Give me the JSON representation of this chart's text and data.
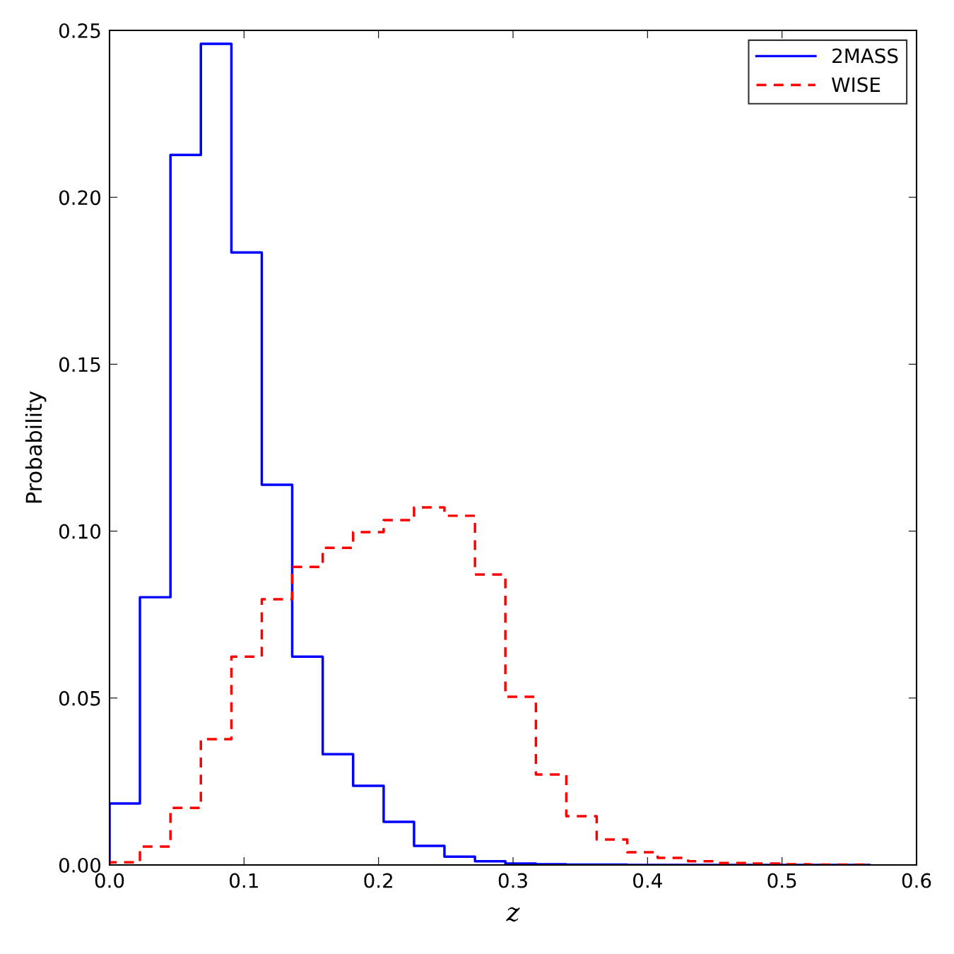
{
  "chart_data": {
    "type": "histogram",
    "xlabel": "z",
    "ylabel": "Probability",
    "bins": [
      0,
      0.0226,
      0.0453,
      0.0679,
      0.0906,
      0.1132,
      0.1358,
      0.1585,
      0.1811,
      0.2038,
      0.2264,
      0.249,
      0.2717,
      0.2943,
      0.317,
      0.3396,
      0.3622,
      0.3849,
      0.4075,
      0.4302,
      0.4528,
      0.4754,
      0.4981,
      0.5207,
      0.5434,
      0.566
    ],
    "series": [
      {
        "name": "2MASS",
        "color": "#0000ff",
        "line_style": "solid",
        "values": [
          0.0184,
          0.0802,
          0.2127,
          0.246,
          0.1835,
          0.1139,
          0.0624,
          0.0332,
          0.0237,
          0.0129,
          0.0057,
          0.0025,
          0.0011,
          0.0004,
          0.0002,
          0.0001,
          0.0001,
          0,
          0,
          0,
          0,
          0,
          0,
          0,
          0
        ]
      },
      {
        "name": "WISE",
        "color": "#ff0000",
        "line_style": "dashed",
        "values": [
          0.0008,
          0.0055,
          0.0171,
          0.0377,
          0.0624,
          0.0796,
          0.0893,
          0.095,
          0.0997,
          0.1033,
          0.1071,
          0.1046,
          0.087,
          0.0504,
          0.0271,
          0.0146,
          0.0076,
          0.0038,
          0.0021,
          0.0011,
          0.0006,
          0.0004,
          0.0002,
          0.0001,
          0.0001
        ]
      }
    ],
    "xlim": [
      0,
      0.6
    ],
    "ylim": [
      0,
      0.25
    ],
    "xticks": [
      {
        "value": 0,
        "label": "0.0"
      },
      0.1,
      0.2,
      0.3,
      0.4,
      0.5,
      0.6
    ],
    "yticks": [
      {
        "value": 0,
        "label": "0.00"
      },
      0.05,
      {
        "value": 0.1,
        "label": "0.10"
      },
      0.15,
      {
        "value": 0.2,
        "label": "0.20"
      },
      0.25
    ],
    "legend": "top right",
    "grid": false
  }
}
